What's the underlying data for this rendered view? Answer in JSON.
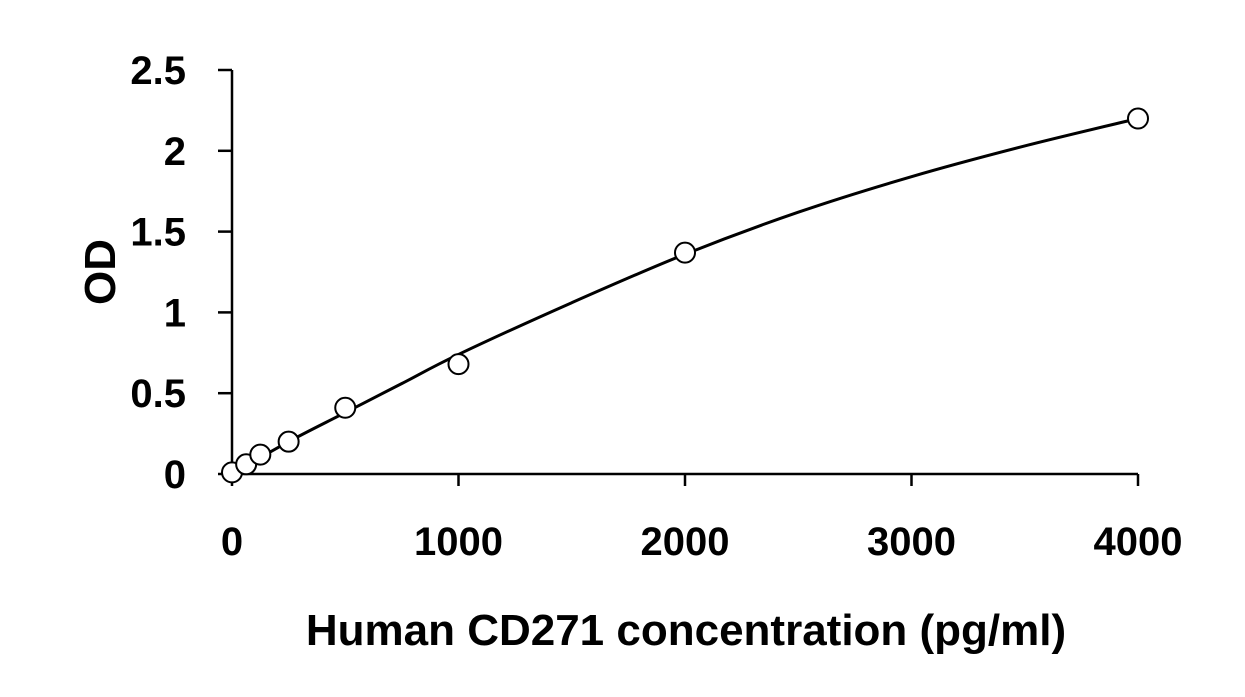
{
  "chart_data": {
    "type": "scatter",
    "title": "",
    "xlabel": "Human CD271 concentration (pg/ml)",
    "ylabel": "OD",
    "xlim": [
      0,
      4000
    ],
    "ylim": [
      0,
      2.5
    ],
    "xticks": [
      0,
      1000,
      2000,
      3000,
      4000
    ],
    "xtick_labels": [
      "0",
      "1000",
      "2000",
      "3000",
      "4000"
    ],
    "yticks": [
      0,
      0.5,
      1,
      1.5,
      2,
      2.5
    ],
    "ytick_labels": [
      "0",
      "0.5",
      "1",
      "1.5",
      "2",
      "2.5"
    ],
    "grid": false,
    "legend": "none",
    "marker": "open-circle",
    "colors": {
      "axis": "#000000",
      "curve": "#000000",
      "marker_fill": "#ffffff"
    },
    "series": [
      {
        "x": [
          0,
          62.5,
          125,
          250,
          500,
          1000,
          2000,
          4000
        ],
        "y": [
          0.01,
          0.06,
          0.12,
          0.2,
          0.41,
          0.68,
          1.37,
          2.2
        ]
      }
    ],
    "fit_curve": {
      "type": "smooth trendline",
      "x": [
        0,
        250,
        500,
        750,
        1000,
        1500,
        2000,
        2500,
        3000,
        3500,
        4000
      ],
      "y": [
        0,
        0.2,
        0.38,
        0.56,
        0.74,
        1.06,
        1.36,
        1.62,
        1.84,
        2.03,
        2.2
      ]
    }
  }
}
